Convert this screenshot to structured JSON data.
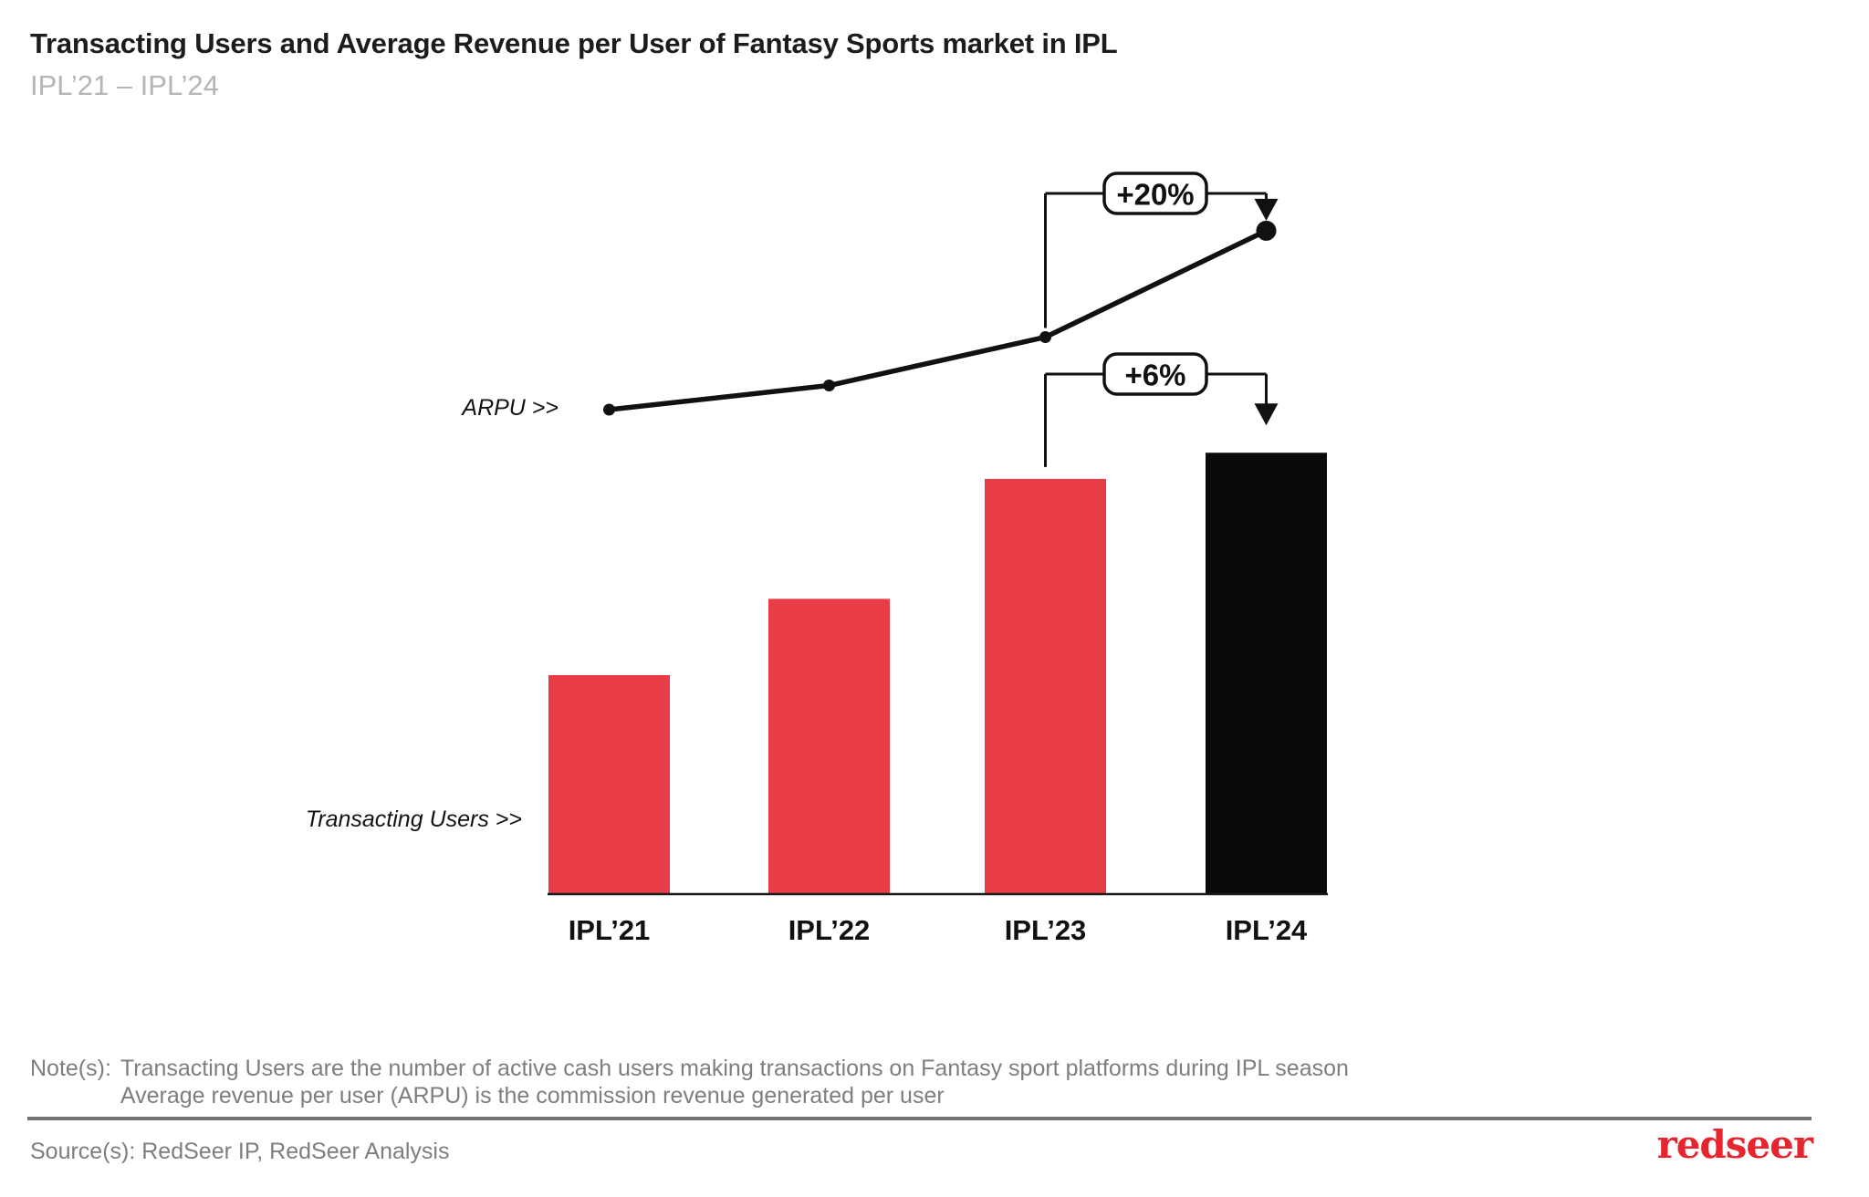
{
  "header": {
    "title": "Transacting Users and Average Revenue per User of Fantasy Sports market in IPL",
    "subtitle": "IPL’21 – IPL’24"
  },
  "chart_data": {
    "type": "bar",
    "subtype": "combo-bar-and-line",
    "title": "Transacting Users and Average Revenue per User of Fantasy Sports market in IPL",
    "xlabel": "",
    "ylabel": "",
    "categories": [
      "IPL’21",
      "IPL’22",
      "IPL’23",
      "IPL’24"
    ],
    "series": [
      {
        "name": "Transacting Users",
        "type": "bar",
        "pointer_label": "Transacting Users >>",
        "values": [
          100,
          135,
          190,
          202
        ],
        "unit": "indexed, IPL’21 = 100 (no numeric axis shown in figure)",
        "bar_colors": [
          "#E83C46",
          "#E83C46",
          "#E83C46",
          "#0A0A0A"
        ]
      },
      {
        "name": "ARPU",
        "type": "line",
        "pointer_label": "ARPU >>",
        "values": [
          100,
          105,
          115,
          137
        ],
        "unit": "indexed, IPL’21 = 100 (no numeric axis shown in figure)",
        "color": "#111111"
      }
    ],
    "annotations": [
      {
        "label": "+20%",
        "series": "ARPU",
        "from": "IPL’23",
        "to": "IPL’24"
      },
      {
        "label": "+6%",
        "series": "Transacting Users",
        "from": "IPL’23",
        "to": "IPL’24"
      }
    ],
    "axis": {
      "x_axis_line": true,
      "y_axis_visible": false,
      "gridlines": false,
      "legend_position": "none"
    }
  },
  "footer": {
    "notes_prefix": "Note(s):",
    "notes": [
      "Transacting Users are the number of active cash users making transactions on Fantasy sport platforms during IPL season",
      "Average revenue per user (ARPU) is the commission revenue generated per user"
    ],
    "source": "Source(s): RedSeer IP, RedSeer Analysis",
    "logo": "redseer"
  },
  "colors": {
    "bar_red": "#E83C46",
    "bar_black": "#0A0A0A",
    "line_black": "#111111",
    "axis_black": "#1A1A1A",
    "title_text": "#1C1C1C",
    "subtitle_gray": "#B5B5B5",
    "note_gray": "#7E7E7E",
    "divider_gray": "#737373",
    "logo_red": "#E6252E"
  }
}
